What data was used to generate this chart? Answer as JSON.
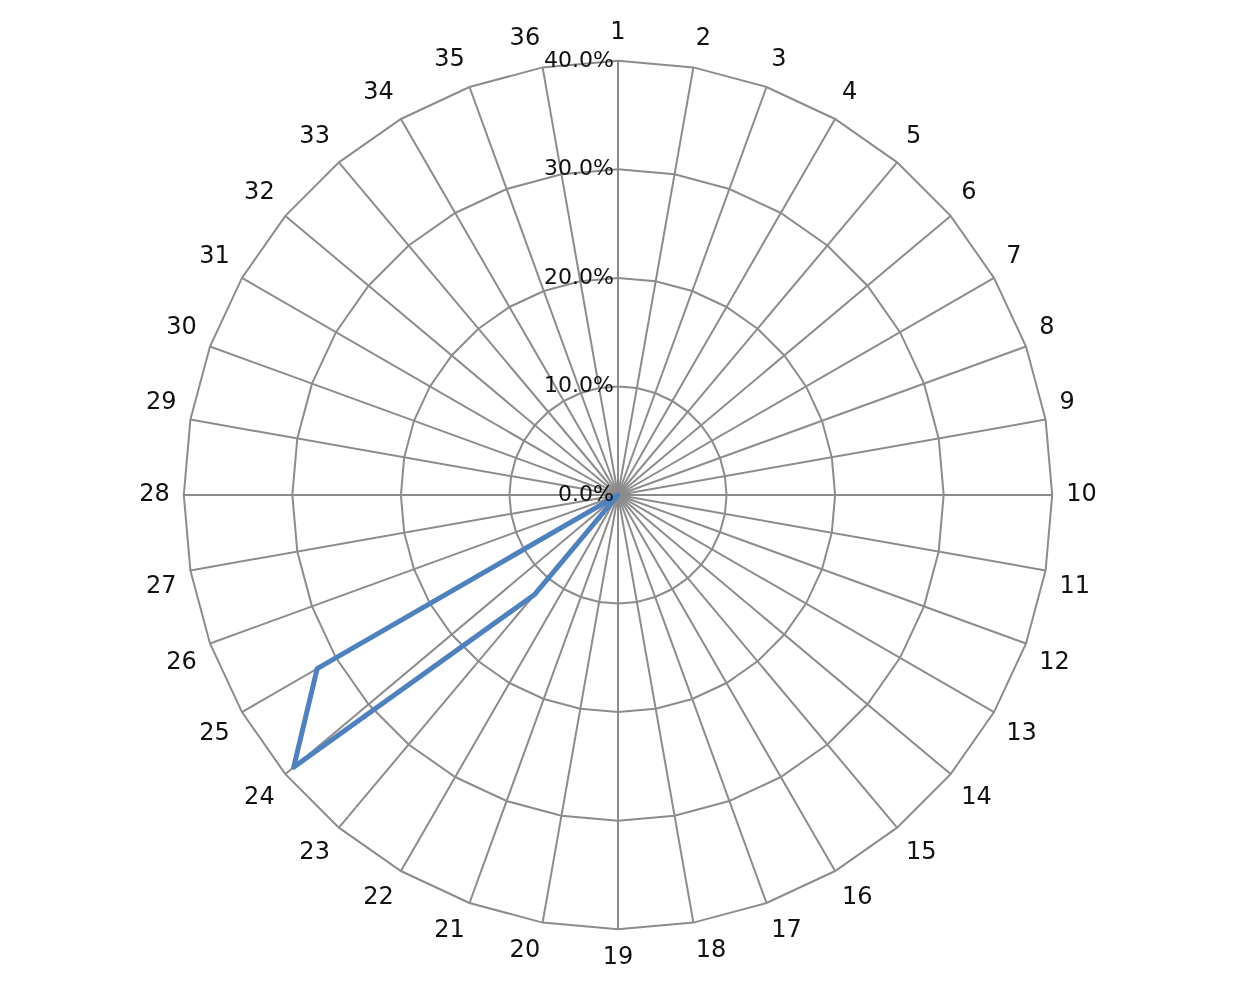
{
  "chart_data": {
    "type": "radar",
    "categories": [
      "1",
      "2",
      "3",
      "4",
      "5",
      "6",
      "7",
      "8",
      "9",
      "10",
      "11",
      "12",
      "13",
      "14",
      "15",
      "16",
      "17",
      "18",
      "19",
      "20",
      "21",
      "22",
      "23",
      "24",
      "25",
      "26",
      "27",
      "28",
      "29",
      "30",
      "31",
      "32",
      "33",
      "34",
      "35",
      "36"
    ],
    "series": [
      {
        "color": "#4f81bd",
        "values": [
          0,
          0,
          0,
          0,
          0,
          0,
          0,
          0,
          0,
          0,
          0,
          0,
          0,
          0,
          0,
          0,
          0,
          0,
          0,
          0,
          0,
          0,
          12,
          39,
          32,
          0,
          0,
          0,
          0,
          0,
          0,
          0,
          0,
          0,
          0,
          0
        ]
      }
    ],
    "ylim": [
      0,
      40
    ],
    "yticks": [
      {
        "value": 0,
        "label": "0.0%"
      },
      {
        "value": 10,
        "label": "10.0%"
      },
      {
        "value": 20,
        "label": "20.0%"
      },
      {
        "value": 30,
        "label": "30.0%"
      },
      {
        "value": 40,
        "label": "40.0%"
      }
    ],
    "grid": true,
    "legend": false,
    "marker": "none",
    "line_style": "solid"
  }
}
